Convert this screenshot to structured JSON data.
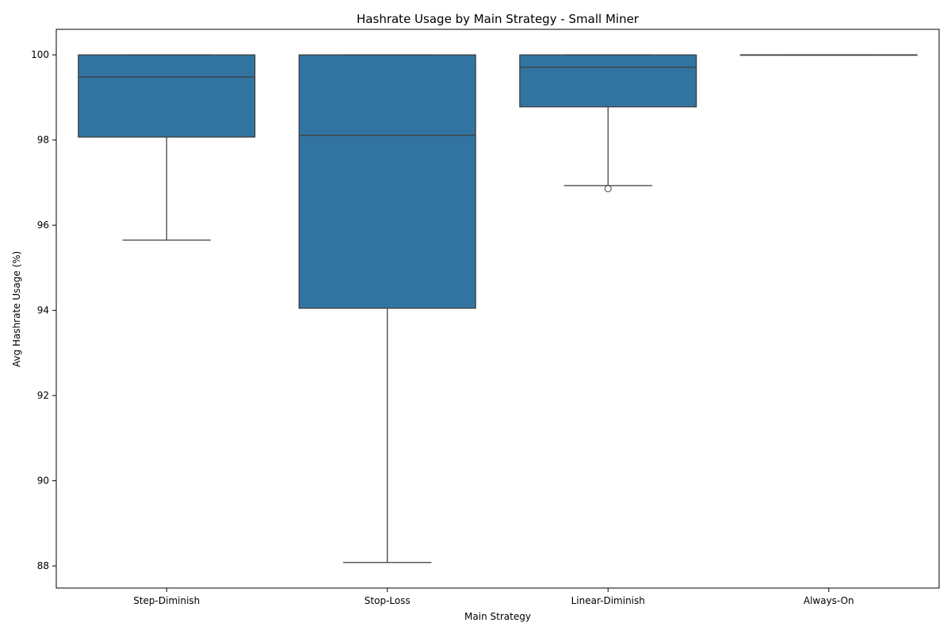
{
  "chart_data": {
    "type": "box",
    "title": "Hashrate Usage by Main Strategy - Small Miner",
    "xlabel": "Main Strategy",
    "ylabel": "Avg Hashrate Usage (%)",
    "categories": [
      "Step-Diminish",
      "Stop-Loss",
      "Linear-Diminish",
      "Always-On"
    ],
    "boxes": [
      {
        "category": "Step-Diminish",
        "whisker_low": 95.65,
        "q1": 98.07,
        "median": 99.48,
        "q3": 100.0,
        "whisker_high": 100.0,
        "outliers": []
      },
      {
        "category": "Stop-Loss",
        "whisker_low": 88.08,
        "q1": 94.05,
        "median": 98.11,
        "q3": 100.0,
        "whisker_high": 100.0,
        "outliers": []
      },
      {
        "category": "Linear-Diminish",
        "whisker_low": 96.93,
        "q1": 98.78,
        "median": 99.71,
        "q3": 100.0,
        "whisker_high": 100.0,
        "outliers": [
          96.86
        ]
      },
      {
        "category": "Always-On",
        "whisker_low": 100.0,
        "q1": 100.0,
        "median": 100.0,
        "q3": 100.0,
        "whisker_high": 100.0,
        "outliers": []
      }
    ],
    "y_ticks": [
      88,
      90,
      92,
      94,
      96,
      98,
      100
    ],
    "ylim": [
      87.48,
      100.6
    ],
    "grid": false,
    "colors": {
      "box_fill": "#3274a1",
      "line": "#3d3d3d",
      "axis": "#000000"
    }
  }
}
